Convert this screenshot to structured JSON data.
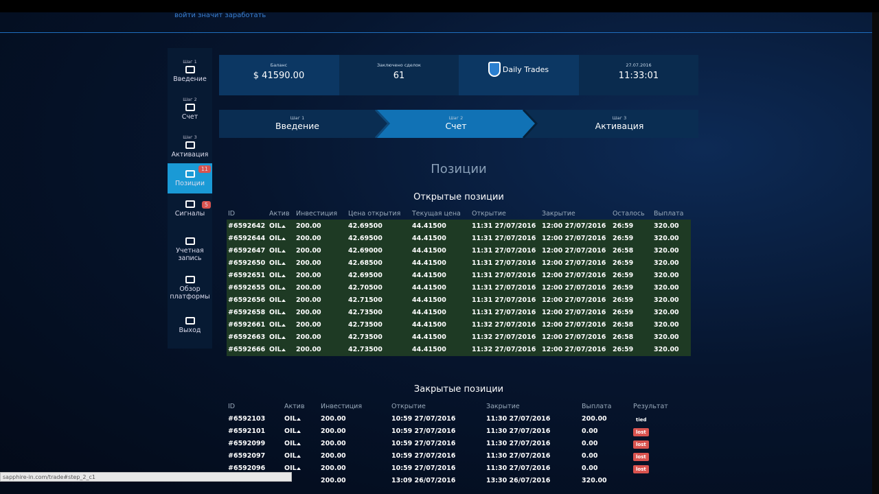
{
  "header": {
    "tagline": "войти значит заработать"
  },
  "sidebar": [
    {
      "step": "Шаг 1",
      "label": "Введение"
    },
    {
      "step": "Шаг 2",
      "label": "Счет"
    },
    {
      "step": "Шаг 3",
      "label": "Активация"
    },
    {
      "label": "Позиции",
      "badge": "11",
      "active": true
    },
    {
      "label": "Сигналы",
      "badge": "5"
    },
    {
      "label": "Учетная запись"
    },
    {
      "label": "Обзор платформы"
    },
    {
      "label": "Выход"
    }
  ],
  "stats": [
    {
      "label": "Баланс",
      "value": "$ 41590.00"
    },
    {
      "label": "Заключено сделок",
      "value": "61"
    },
    {
      "brand": "Daily Trades"
    },
    {
      "label": "27.07.2016",
      "value": "11:33:01"
    }
  ],
  "steps": [
    {
      "step": "Шаг 1",
      "label": "Введение"
    },
    {
      "step": "Шаг 2",
      "label": "Счет",
      "active": true
    },
    {
      "step": "Шаг 3",
      "label": "Активация"
    }
  ],
  "title": "Позиции",
  "open_positions": {
    "title": "Открытые позиции",
    "columns": [
      "ID",
      "Актив",
      "Инвестиция",
      "Цена открытия",
      "Текущая цена",
      "Открытие",
      "Закрытие",
      "Осталось",
      "Выплата"
    ],
    "rows": [
      [
        "#6592642",
        "OIL",
        "200.00",
        "42.69500",
        "44.41500",
        "11:31 27/07/2016",
        "12:00 27/07/2016",
        "26:59",
        "320.00"
      ],
      [
        "#6592644",
        "OIL",
        "200.00",
        "42.69500",
        "44.41500",
        "11:31 27/07/2016",
        "12:00 27/07/2016",
        "26:59",
        "320.00"
      ],
      [
        "#6592647",
        "OIL",
        "200.00",
        "42.69000",
        "44.41500",
        "11:31 27/07/2016",
        "12:00 27/07/2016",
        "26:58",
        "320.00"
      ],
      [
        "#6592650",
        "OIL",
        "200.00",
        "42.68500",
        "44.41500",
        "11:31 27/07/2016",
        "12:00 27/07/2016",
        "26:59",
        "320.00"
      ],
      [
        "#6592651",
        "OIL",
        "200.00",
        "42.69500",
        "44.41500",
        "11:31 27/07/2016",
        "12:00 27/07/2016",
        "26:59",
        "320.00"
      ],
      [
        "#6592655",
        "OIL",
        "200.00",
        "42.70500",
        "44.41500",
        "11:31 27/07/2016",
        "12:00 27/07/2016",
        "26:59",
        "320.00"
      ],
      [
        "#6592656",
        "OIL",
        "200.00",
        "42.71500",
        "44.41500",
        "11:31 27/07/2016",
        "12:00 27/07/2016",
        "26:59",
        "320.00"
      ],
      [
        "#6592658",
        "OIL",
        "200.00",
        "42.73500",
        "44.41500",
        "11:31 27/07/2016",
        "12:00 27/07/2016",
        "26:59",
        "320.00"
      ],
      [
        "#6592661",
        "OIL",
        "200.00",
        "42.73500",
        "44.41500",
        "11:32 27/07/2016",
        "12:00 27/07/2016",
        "26:58",
        "320.00"
      ],
      [
        "#6592663",
        "OIL",
        "200.00",
        "42.73500",
        "44.41500",
        "11:32 27/07/2016",
        "12:00 27/07/2016",
        "26:58",
        "320.00"
      ],
      [
        "#6592666",
        "OIL",
        "200.00",
        "42.73500",
        "44.41500",
        "11:32 27/07/2016",
        "12:00 27/07/2016",
        "26:59",
        "320.00"
      ]
    ]
  },
  "closed_positions": {
    "title": "Закрытые позиции",
    "columns": [
      "ID",
      "Актив",
      "Инвестиция",
      "Открытие",
      "Закрытие",
      "Выплата",
      "Результат"
    ],
    "rows": [
      {
        "id": "#6592103",
        "asset": "OIL",
        "investment": "200.00",
        "open": "10:59 27/07/2016",
        "close": "11:30 27/07/2016",
        "payout": "200.00",
        "result": "tied"
      },
      {
        "id": "#6592101",
        "asset": "OIL",
        "investment": "200.00",
        "open": "10:59 27/07/2016",
        "close": "11:30 27/07/2016",
        "payout": "0.00",
        "result": "lost"
      },
      {
        "id": "#6592099",
        "asset": "OIL",
        "investment": "200.00",
        "open": "10:59 27/07/2016",
        "close": "11:30 27/07/2016",
        "payout": "0.00",
        "result": "lost"
      },
      {
        "id": "#6592097",
        "asset": "OIL",
        "investment": "200.00",
        "open": "10:59 27/07/2016",
        "close": "11:30 27/07/2016",
        "payout": "0.00",
        "result": "lost"
      },
      {
        "id": "#6592096",
        "asset": "OIL",
        "investment": "200.00",
        "open": "10:59 27/07/2016",
        "close": "11:30 27/07/2016",
        "payout": "0.00",
        "result": "lost"
      },
      {
        "investment": "200.00",
        "open": "13:09 26/07/2016",
        "close": "13:30 26/07/2016",
        "payout": "320.00"
      }
    ]
  },
  "status_bar": "sapphire-in.com/trade#step_2_c1"
}
